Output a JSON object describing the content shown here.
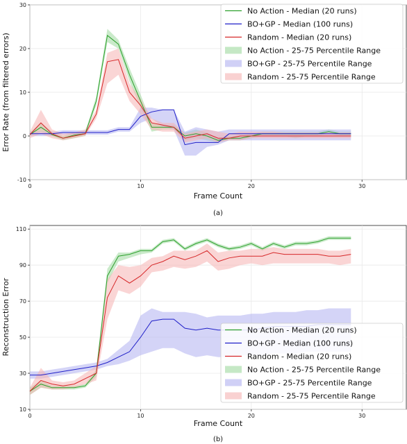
{
  "colors": {
    "no_action": "#2ca02c",
    "bo_gp": "#1f1fc8",
    "random": "#d62728",
    "no_action_fill": "#9fd99f",
    "bo_gp_fill": "#b0b0f0",
    "random_fill": "#f5b3b3"
  },
  "chart_data": [
    {
      "type": "line",
      "caption": "(a)",
      "xlabel": "Frame Count",
      "ylabel": "Error Rate (from filtered errors)",
      "xlim": [
        0,
        34
      ],
      "ylim": [
        -10,
        30
      ],
      "xticks": [
        0,
        10,
        20,
        30
      ],
      "yticks": [
        -10,
        0,
        10,
        20,
        30
      ],
      "grid": true,
      "legend_position": "top-right",
      "series": [
        {
          "name": "No Action - Median (20 runs)",
          "kind": "line",
          "color_key": "no_action",
          "x": [
            0,
            1,
            2,
            3,
            4,
            5,
            6,
            7,
            8,
            9,
            10,
            11,
            12,
            13,
            14,
            15,
            16,
            17,
            18,
            19,
            20,
            21,
            22,
            23,
            24,
            25,
            26,
            27,
            28,
            29
          ],
          "y": [
            0.3,
            2.0,
            0.3,
            -0.5,
            0.2,
            0.5,
            8.0,
            23.0,
            21.0,
            14.0,
            8.0,
            2.0,
            2.0,
            2.0,
            0.0,
            0.5,
            0.0,
            -1.0,
            -0.5,
            -0.5,
            0.0,
            0.5,
            0.5,
            0.5,
            0.5,
            0.5,
            0.5,
            1.0,
            0.5,
            0.5
          ]
        },
        {
          "name": "BO+GP - Median (100 runs)",
          "kind": "line",
          "color_key": "bo_gp",
          "x": [
            0,
            1,
            2,
            3,
            4,
            5,
            6,
            7,
            8,
            9,
            10,
            11,
            12,
            13,
            14,
            15,
            16,
            17,
            18,
            19,
            20,
            21,
            22,
            23,
            24,
            25,
            26,
            27,
            28,
            29
          ],
          "y": [
            0.5,
            0.5,
            0.5,
            0.8,
            0.8,
            0.8,
            0.8,
            0.8,
            1.5,
            1.5,
            4.5,
            5.5,
            6.0,
            6.0,
            -2.0,
            -1.5,
            -1.5,
            -1.5,
            0.5,
            0.5,
            0.5,
            0.5,
            0.5,
            0.5,
            0.5,
            0.5,
            0.5,
            0.5,
            0.5,
            0.5
          ]
        },
        {
          "name": "Random - Median (20 runs)",
          "kind": "line",
          "color_key": "random",
          "x": [
            0,
            1,
            2,
            3,
            4,
            5,
            6,
            7,
            8,
            9,
            10,
            11,
            12,
            13,
            14,
            15,
            16,
            17,
            18,
            19,
            20,
            21,
            22,
            23,
            24,
            25,
            26,
            27,
            28,
            29
          ],
          "y": [
            0.3,
            3.0,
            0.5,
            -0.5,
            0.0,
            0.5,
            5.0,
            17.0,
            17.5,
            10.0,
            7.0,
            3.0,
            2.5,
            2.0,
            -0.5,
            0.0,
            0.5,
            -0.5,
            -0.5,
            0.0,
            0.0,
            0.0,
            0.0,
            0.0,
            0.0,
            0.0,
            0.0,
            0.0,
            0.0,
            0.0
          ]
        },
        {
          "name": "No Action - 25-75 Percentile Range",
          "kind": "band",
          "color_key": "no_action_fill",
          "x": [
            0,
            1,
            2,
            3,
            4,
            5,
            6,
            7,
            8,
            9,
            10,
            11,
            12,
            13,
            14,
            15,
            16,
            17,
            18,
            19,
            20,
            21,
            22,
            23,
            24,
            25,
            26,
            27,
            28,
            29
          ],
          "low": [
            0.0,
            1.0,
            0.0,
            -1.0,
            -0.5,
            0.0,
            7.0,
            21.5,
            20.0,
            12.5,
            6.5,
            1.0,
            1.5,
            1.5,
            -1.0,
            -0.5,
            -1.0,
            -1.5,
            -1.0,
            -1.0,
            -0.5,
            0.0,
            0.0,
            0.0,
            -0.5,
            0.0,
            0.0,
            0.5,
            0.0,
            0.0
          ],
          "high": [
            0.8,
            3.0,
            1.0,
            0.0,
            0.8,
            1.0,
            9.0,
            24.5,
            22.0,
            15.5,
            9.5,
            3.0,
            2.5,
            2.5,
            0.8,
            1.5,
            0.8,
            -0.5,
            0.0,
            0.0,
            0.5,
            1.0,
            1.0,
            1.0,
            1.0,
            1.0,
            1.0,
            1.5,
            1.0,
            1.0
          ]
        },
        {
          "name": "BO+GP - 25-75 Percentile Range",
          "kind": "band",
          "color_key": "bo_gp_fill",
          "x": [
            0,
            1,
            2,
            3,
            4,
            5,
            6,
            7,
            8,
            9,
            10,
            11,
            12,
            13,
            14,
            15,
            16,
            17,
            18,
            19,
            20,
            21,
            22,
            23,
            24,
            25,
            26,
            27,
            28,
            29
          ],
          "low": [
            0.0,
            0.0,
            0.0,
            0.3,
            0.3,
            0.3,
            0.3,
            0.3,
            1.0,
            1.0,
            3.0,
            4.0,
            2.0,
            1.5,
            -4.5,
            -4.5,
            -2.5,
            -2.0,
            -1.0,
            -1.0,
            -1.0,
            -1.0,
            -1.0,
            -1.0,
            -1.0,
            -1.0,
            -1.0,
            -1.0,
            -1.0,
            -1.0
          ],
          "high": [
            1.0,
            1.0,
            1.0,
            1.3,
            1.3,
            1.3,
            1.3,
            1.3,
            2.0,
            2.0,
            6.5,
            6.5,
            6.0,
            6.0,
            1.0,
            2.0,
            1.5,
            1.0,
            1.5,
            1.5,
            1.5,
            1.5,
            1.5,
            1.5,
            1.5,
            1.5,
            1.5,
            1.5,
            1.5,
            1.5
          ]
        },
        {
          "name": "Random - 25-75 Percentile Range",
          "kind": "band",
          "color_key": "random_fill",
          "x": [
            0,
            1,
            2,
            3,
            4,
            5,
            6,
            7,
            8,
            9,
            10,
            11,
            12,
            13,
            14,
            15,
            16,
            17,
            18,
            19,
            20,
            21,
            22,
            23,
            24,
            25,
            26,
            27,
            28,
            29
          ],
          "low": [
            -0.5,
            0.5,
            -0.5,
            -1.0,
            -0.5,
            0.0,
            4.0,
            12.0,
            14.0,
            8.0,
            5.0,
            1.5,
            1.0,
            1.0,
            -1.5,
            -1.0,
            -0.5,
            -1.5,
            -1.0,
            -1.0,
            -0.5,
            -0.5,
            -0.5,
            -0.5,
            -0.5,
            -0.5,
            -0.5,
            -0.5,
            -0.5,
            -0.5
          ],
          "high": [
            1.0,
            6.0,
            1.5,
            0.5,
            0.8,
            1.5,
            6.0,
            19.0,
            20.0,
            12.0,
            8.5,
            4.0,
            3.0,
            3.0,
            0.5,
            1.0,
            1.5,
            1.0,
            0.5,
            1.0,
            1.0,
            1.0,
            1.0,
            0.8,
            0.8,
            0.8,
            0.8,
            0.8,
            0.8,
            0.8
          ]
        }
      ]
    },
    {
      "type": "line",
      "caption": "(b)",
      "xlabel": "Frame Count",
      "ylabel": "Reconstruction Error",
      "xlim": [
        0,
        34
      ],
      "ylim": [
        10,
        112
      ],
      "xticks": [
        0,
        10,
        20,
        30
      ],
      "yticks": [
        10,
        30,
        50,
        70,
        90,
        110
      ],
      "grid": true,
      "legend_position": "bottom-right",
      "series": [
        {
          "name": "No Action - Median (20 runs)",
          "kind": "line",
          "color_key": "no_action",
          "x": [
            0,
            1,
            2,
            3,
            4,
            5,
            6,
            7,
            8,
            9,
            10,
            11,
            12,
            13,
            14,
            15,
            16,
            17,
            18,
            19,
            20,
            21,
            22,
            23,
            24,
            25,
            26,
            27,
            28,
            29
          ],
          "y": [
            20,
            24,
            22,
            22,
            22,
            23,
            30,
            84,
            95,
            96,
            98,
            98,
            103,
            104,
            99,
            102,
            104,
            101,
            99,
            100,
            102,
            99,
            102,
            100,
            102,
            102,
            103,
            105,
            105,
            105
          ]
        },
        {
          "name": "BO+GP - Median (100 runs)",
          "kind": "line",
          "color_key": "bo_gp",
          "x": [
            0,
            1,
            2,
            3,
            4,
            5,
            6,
            7,
            8,
            9,
            10,
            11,
            12,
            13,
            14,
            15,
            16,
            17,
            18,
            19,
            20,
            21,
            22,
            23,
            24,
            25,
            26,
            27,
            28,
            29
          ],
          "y": [
            29,
            29,
            30,
            31,
            32,
            33,
            34,
            36,
            39,
            42,
            50,
            59,
            60,
            60,
            55,
            54,
            55,
            54,
            54,
            54,
            54,
            55,
            56,
            56,
            56,
            56,
            57,
            57,
            57,
            57
          ]
        },
        {
          "name": "Random - Median (20 runs)",
          "kind": "line",
          "color_key": "random",
          "x": [
            0,
            1,
            2,
            3,
            4,
            5,
            6,
            7,
            8,
            9,
            10,
            11,
            12,
            13,
            14,
            15,
            16,
            17,
            18,
            19,
            20,
            21,
            22,
            23,
            24,
            25,
            26,
            27,
            28,
            29
          ],
          "y": [
            20,
            26,
            24,
            23,
            24,
            27,
            30,
            72,
            84,
            80,
            84,
            90,
            92,
            95,
            93,
            95,
            98,
            92,
            94,
            95,
            95,
            95,
            97,
            96,
            96,
            96,
            96,
            95,
            95,
            96
          ]
        },
        {
          "name": "No Action - 25-75 Percentile Range",
          "kind": "band",
          "color_key": "no_action_fill",
          "x": [
            0,
            1,
            2,
            3,
            4,
            5,
            6,
            7,
            8,
            9,
            10,
            11,
            12,
            13,
            14,
            15,
            16,
            17,
            18,
            19,
            20,
            21,
            22,
            23,
            24,
            25,
            26,
            27,
            28,
            29
          ],
          "low": [
            18,
            22,
            21,
            21,
            21,
            22,
            28,
            80,
            92,
            94,
            96,
            97,
            102,
            103,
            98,
            101,
            103,
            100,
            98,
            99,
            101,
            98,
            101,
            99,
            101,
            101,
            102,
            104,
            104,
            104
          ],
          "high": [
            22,
            26,
            23,
            23,
            23,
            24,
            32,
            88,
            97,
            97,
            99,
            99,
            104,
            105,
            100,
            103,
            105,
            102,
            100,
            101,
            103,
            100,
            103,
            101,
            103,
            103,
            104,
            106,
            106,
            106
          ]
        },
        {
          "name": "BO+GP - 25-75 Percentile Range",
          "kind": "band",
          "color_key": "bo_gp_fill",
          "x": [
            0,
            1,
            2,
            3,
            4,
            5,
            6,
            7,
            8,
            9,
            10,
            11,
            12,
            13,
            14,
            15,
            16,
            17,
            18,
            19,
            20,
            21,
            22,
            23,
            24,
            25,
            26,
            27,
            28,
            29
          ],
          "low": [
            27,
            27,
            28,
            29,
            30,
            31,
            32,
            34,
            35,
            37,
            40,
            42,
            44,
            44,
            41,
            39,
            40,
            39,
            39,
            40,
            40,
            40,
            41,
            41,
            41,
            42,
            42,
            42,
            42,
            42
          ],
          "high": [
            31,
            31,
            32,
            33,
            34,
            35,
            36,
            38,
            43,
            48,
            62,
            66,
            64,
            64,
            64,
            63,
            61,
            62,
            62,
            62,
            63,
            63,
            64,
            64,
            64,
            65,
            65,
            66,
            66,
            66
          ]
        },
        {
          "name": "Random - 25-75 Percentile Range",
          "kind": "band",
          "color_key": "random_fill",
          "x": [
            0,
            1,
            2,
            3,
            4,
            5,
            6,
            7,
            8,
            9,
            10,
            11,
            12,
            13,
            14,
            15,
            16,
            17,
            18,
            19,
            20,
            21,
            22,
            23,
            24,
            25,
            26,
            27,
            28,
            29
          ],
          "low": [
            18,
            22,
            21,
            21,
            22,
            24,
            26,
            60,
            76,
            74,
            78,
            86,
            87,
            89,
            88,
            89,
            92,
            87,
            88,
            90,
            91,
            90,
            91,
            91,
            91,
            91,
            91,
            91,
            90,
            91
          ],
          "high": [
            22,
            33,
            26,
            25,
            26,
            30,
            34,
            82,
            90,
            89,
            90,
            94,
            95,
            98,
            98,
            98,
            102,
            97,
            98,
            98,
            99,
            99,
            100,
            99,
            99,
            99,
            99,
            98,
            98,
            99
          ]
        }
      ]
    }
  ]
}
